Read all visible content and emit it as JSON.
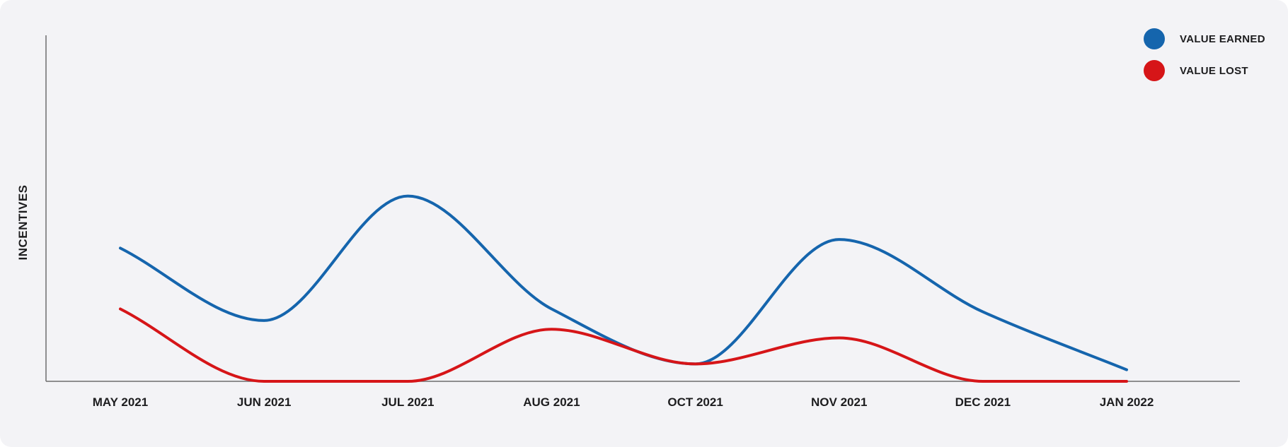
{
  "chart_data": {
    "type": "line",
    "categories": [
      "MAY 2021",
      "JUN 2021",
      "JUL 2021",
      "AUG 2021",
      "OCT 2021",
      "NOV 2021",
      "DEC 2021",
      "JAN 2022"
    ],
    "ylabel": "INCENTIVES",
    "xlabel": "",
    "title": "",
    "ylim": [
      0,
      100
    ],
    "grid": false,
    "legend_position": "top-right",
    "series": [
      {
        "name": "VALUE EARNED",
        "color": "#1565ad",
        "values": [
          46,
          21,
          64,
          25,
          6,
          49,
          24,
          4
        ]
      },
      {
        "name": "VALUE LOST",
        "color": "#d61518",
        "values": [
          25,
          0,
          0,
          18,
          6,
          15,
          0,
          0
        ]
      }
    ]
  }
}
